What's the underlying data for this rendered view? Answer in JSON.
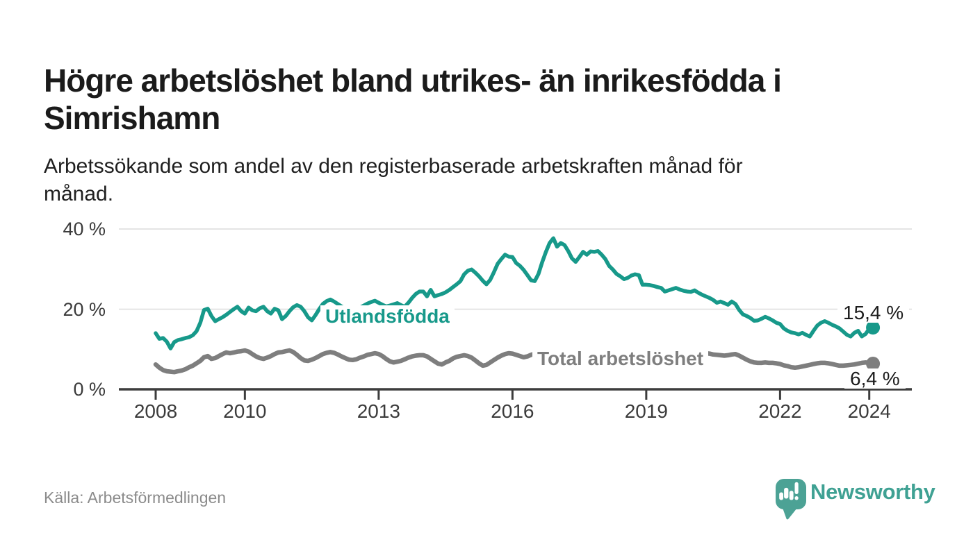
{
  "title": {
    "line1": "Högre arbetslöshet bland utrikes- än inrikesfödda i",
    "line2": "Simrishamn"
  },
  "subtitle": {
    "line1": "Arbetssökande som andel av den registerbaserade arbetskraften månad för",
    "line2": "månad."
  },
  "source": "Källa: Arbetsförmedlingen",
  "logo": {
    "text": "Newsworthy",
    "text_color": "#3FA193",
    "icon_color": "#4CA295"
  },
  "chart_data": {
    "type": "line",
    "unit": "%",
    "x_frequency": "monthly",
    "x_start": "2008-01",
    "x_end": "2024-02",
    "ylim": [
      0,
      43
    ],
    "grid": "horizontal",
    "axis_color": "#3d3d3d",
    "grid_color": "#dcdcdc",
    "y_ticks": [
      {
        "value": 0,
        "label": "0 %"
      },
      {
        "value": 20,
        "label": "20 %"
      },
      {
        "value": 40,
        "label": "40 %"
      }
    ],
    "x_ticks": [
      {
        "year": 2008,
        "label": "2008"
      },
      {
        "year": 2010,
        "label": "2010"
      },
      {
        "year": 2013,
        "label": "2013"
      },
      {
        "year": 2016,
        "label": "2016"
      },
      {
        "year": 2019,
        "label": "2019"
      },
      {
        "year": 2022,
        "label": "2022"
      },
      {
        "year": 2024,
        "label": "2024"
      }
    ],
    "series": [
      {
        "name": "Utlandsfödda",
        "color": "#17998A",
        "end_label": "15,4 %",
        "end_value": 15.4,
        "values": [
          14.0,
          12.6,
          12.8,
          11.9,
          10.2,
          11.8,
          12.3,
          12.5,
          12.8,
          13.0,
          13.5,
          14.5,
          16.6,
          19.8,
          20.1,
          18.3,
          17.0,
          17.5,
          18.0,
          18.6,
          19.3,
          20.0,
          20.6,
          19.5,
          18.9,
          20.4,
          19.7,
          19.5,
          20.2,
          20.6,
          19.5,
          18.9,
          20.1,
          19.7,
          17.5,
          18.3,
          19.5,
          20.5,
          21.0,
          20.6,
          19.5,
          18.0,
          17.2,
          18.5,
          20.0,
          21.3,
          22.0,
          22.4,
          21.9,
          21.3,
          20.7,
          20.2,
          19.8,
          19.6,
          19.9,
          20.4,
          20.9,
          21.4,
          21.8,
          22.1,
          21.6,
          21.1,
          20.7,
          20.9,
          21.2,
          21.5,
          21.0,
          20.6,
          21.6,
          22.8,
          23.8,
          24.4,
          24.4,
          23.2,
          24.8,
          23.2,
          23.5,
          23.8,
          24.2,
          24.8,
          25.5,
          26.2,
          27.0,
          28.7,
          29.6,
          29.9,
          29.1,
          28.2,
          27.1,
          26.2,
          27.3,
          29.2,
          31.3,
          32.5,
          33.6,
          33.1,
          33.0,
          31.5,
          30.8,
          29.8,
          28.5,
          27.2,
          27.0,
          28.8,
          31.7,
          34.3,
          36.5,
          37.7,
          35.6,
          36.5,
          36.0,
          34.5,
          32.7,
          31.8,
          33.0,
          34.3,
          33.6,
          34.4,
          34.3,
          34.5,
          33.6,
          32.5,
          30.8,
          29.9,
          28.8,
          28.2,
          27.5,
          27.8,
          28.4,
          28.7,
          28.5,
          26.1,
          26.1,
          26.0,
          25.8,
          25.5,
          25.3,
          24.4,
          24.7,
          25.0,
          25.3,
          24.9,
          24.6,
          24.4,
          24.3,
          24.7,
          24.1,
          23.6,
          23.2,
          22.8,
          22.3,
          21.6,
          21.9,
          21.5,
          21.1,
          21.9,
          21.3,
          19.8,
          18.7,
          18.3,
          17.8,
          17.1,
          17.2,
          17.6,
          18.1,
          17.7,
          17.2,
          16.6,
          16.3,
          15.2,
          14.6,
          14.2,
          14.0,
          13.7,
          14.1,
          13.6,
          13.2,
          14.6,
          15.9,
          16.6,
          17.0,
          16.6,
          16.1,
          15.7,
          15.2,
          14.4,
          13.6,
          13.2,
          14.1,
          14.6,
          13.2,
          13.8,
          15.1,
          15.4
        ]
      },
      {
        "name": "Total arbetslöshet",
        "color": "#7E7E7E",
        "end_label": "6,4 %",
        "end_value": 6.4,
        "values": [
          6.2,
          5.4,
          4.8,
          4.5,
          4.4,
          4.3,
          4.5,
          4.7,
          5.0,
          5.5,
          5.9,
          6.5,
          7.1,
          8.0,
          8.3,
          7.6,
          7.8,
          8.3,
          8.8,
          9.2,
          9.0,
          9.2,
          9.4,
          9.5,
          9.7,
          9.4,
          8.8,
          8.2,
          7.8,
          7.6,
          7.9,
          8.3,
          8.8,
          9.2,
          9.3,
          9.5,
          9.7,
          9.3,
          8.6,
          7.8,
          7.2,
          7.1,
          7.4,
          7.8,
          8.3,
          8.8,
          9.1,
          9.3,
          9.1,
          8.7,
          8.2,
          7.8,
          7.4,
          7.3,
          7.5,
          7.9,
          8.2,
          8.6,
          8.8,
          9.0,
          8.8,
          8.3,
          7.6,
          7.0,
          6.7,
          6.9,
          7.1,
          7.5,
          7.9,
          8.2,
          8.4,
          8.5,
          8.5,
          8.2,
          7.6,
          7.0,
          6.4,
          6.2,
          6.7,
          7.1,
          7.7,
          8.1,
          8.3,
          8.5,
          8.3,
          7.9,
          7.2,
          6.5,
          5.9,
          6.1,
          6.7,
          7.3,
          7.9,
          8.4,
          8.8,
          9.0,
          8.9,
          8.6,
          8.3,
          8.0,
          8.2,
          8.6,
          8.9,
          9.1,
          8.9,
          8.6,
          8.3,
          8.5,
          8.7,
          8.9,
          8.6,
          8.2,
          7.8,
          7.6,
          7.7,
          8.0,
          8.3,
          8.5,
          8.7,
          8.8,
          8.6,
          8.3,
          7.9,
          7.5,
          7.2,
          7.0,
          7.2,
          7.5,
          7.7,
          7.9,
          8.0,
          8.1,
          8.0,
          7.8,
          7.5,
          7.2,
          7.0,
          6.9,
          7.1,
          7.3,
          7.5,
          7.7,
          7.8,
          7.9,
          8.1,
          8.3,
          8.6,
          8.9,
          9.0,
          8.9,
          8.7,
          8.6,
          8.5,
          8.4,
          8.5,
          8.7,
          8.8,
          8.4,
          7.9,
          7.4,
          7.0,
          6.7,
          6.6,
          6.6,
          6.7,
          6.6,
          6.6,
          6.5,
          6.3,
          6.0,
          5.8,
          5.5,
          5.4,
          5.5,
          5.7,
          5.9,
          6.1,
          6.3,
          6.5,
          6.6,
          6.6,
          6.5,
          6.3,
          6.1,
          5.9,
          5.9,
          6.0,
          6.1,
          6.2,
          6.4,
          6.6,
          6.7,
          6.6,
          6.4
        ]
      }
    ]
  }
}
